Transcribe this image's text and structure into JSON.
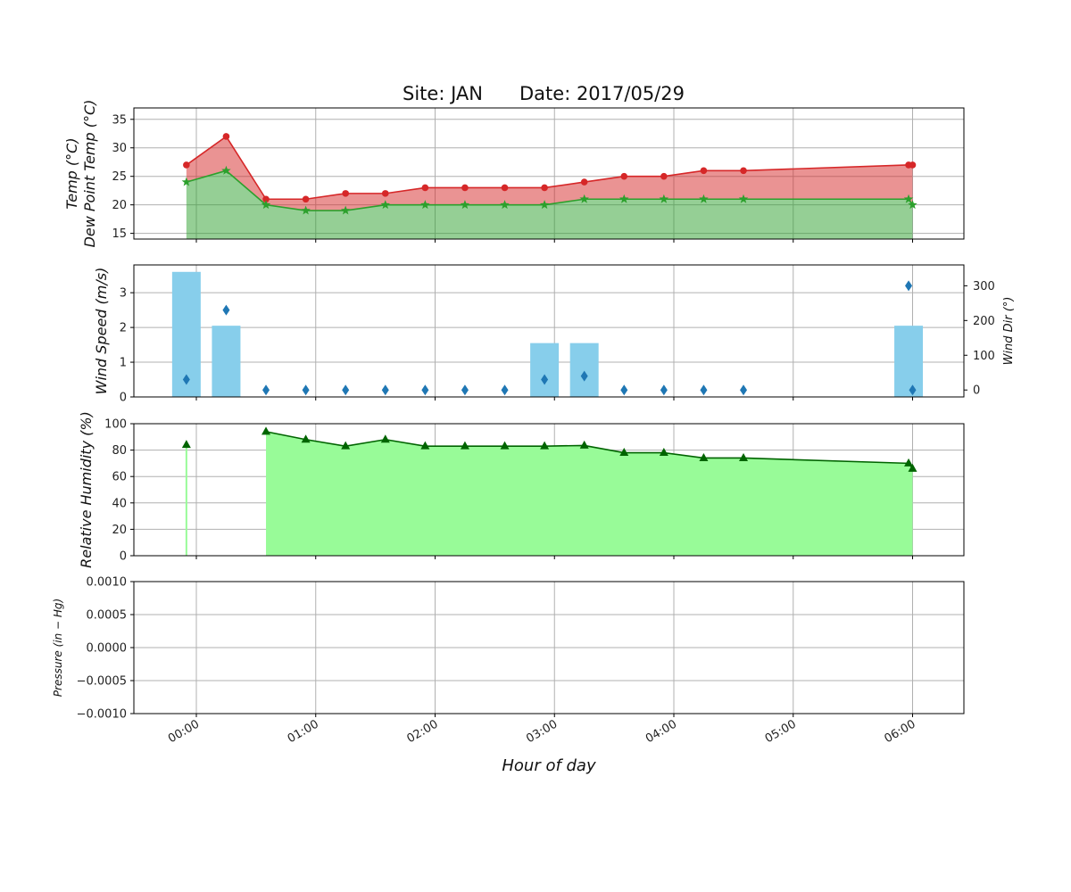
{
  "figure": {
    "title_site": "Site: JAN",
    "title_date": "Date: 2017/05/29",
    "xlabel": "Hour of day",
    "xticks": [
      "00:00",
      "01:00",
      "02:00",
      "03:00",
      "04:00",
      "05:00",
      "06:00"
    ]
  },
  "chart_data": [
    {
      "type": "area",
      "ylabel_line1": "Temp (°C)",
      "ylabel_line2": "Dew Point Temp (°C)",
      "ylim": [
        14,
        37
      ],
      "yticks": [
        "15",
        "20",
        "25",
        "30",
        "35"
      ],
      "x": [
        "23:55",
        "00:15",
        "00:35",
        "00:55",
        "01:15",
        "01:35",
        "01:55",
        "02:15",
        "02:35",
        "02:55",
        "03:15",
        "03:35",
        "03:55",
        "04:15",
        "04:35",
        "05:58",
        "06:00"
      ],
      "series": [
        {
          "name": "Temp",
          "color": "#d62728",
          "values": [
            27,
            32,
            21,
            21,
            22,
            22,
            23,
            23,
            23,
            23,
            24,
            25,
            25,
            26,
            26,
            27,
            27
          ]
        },
        {
          "name": "Dew Point Temp",
          "color": "#2ca02c",
          "values": [
            24,
            26,
            20,
            19,
            19,
            20,
            20,
            20,
            20,
            20,
            21,
            21,
            21,
            21,
            21,
            21,
            20
          ]
        }
      ]
    },
    {
      "type": "bar",
      "ylabel": "Wind Speed (m/s)",
      "ylabel_right": "Wind Dir (°)",
      "ylim": [
        0,
        3.8
      ],
      "yticks": [
        "0",
        "1",
        "2",
        "3"
      ],
      "ylim_right": [
        -20,
        360
      ],
      "yticks_right": [
        "0",
        "100",
        "200",
        "300"
      ],
      "bar_color": "#87ceeb",
      "marker_color": "#1f77b4",
      "bars": [
        {
          "x": "23:55",
          "speed": 3.6
        },
        {
          "x": "00:15",
          "speed": 2.05
        },
        {
          "x": "02:55",
          "speed": 1.55
        },
        {
          "x": "03:15",
          "speed": 1.55
        },
        {
          "x": "05:58",
          "speed": 2.05
        }
      ],
      "wind_dir": [
        {
          "x": "23:55",
          "deg": 30
        },
        {
          "x": "00:15",
          "deg": 230
        },
        {
          "x": "00:35",
          "deg": 0
        },
        {
          "x": "00:55",
          "deg": 0
        },
        {
          "x": "01:15",
          "deg": 0
        },
        {
          "x": "01:35",
          "deg": 0
        },
        {
          "x": "01:55",
          "deg": 0
        },
        {
          "x": "02:15",
          "deg": 0
        },
        {
          "x": "02:35",
          "deg": 0
        },
        {
          "x": "02:55",
          "deg": 30
        },
        {
          "x": "03:15",
          "deg": 40
        },
        {
          "x": "03:35",
          "deg": 0
        },
        {
          "x": "03:55",
          "deg": 0
        },
        {
          "x": "04:15",
          "deg": 0
        },
        {
          "x": "04:35",
          "deg": 0
        },
        {
          "x": "05:58",
          "deg": 300
        },
        {
          "x": "06:00",
          "deg": 0
        }
      ]
    },
    {
      "type": "area",
      "ylabel": "Relative Humidity (%)",
      "ylim": [
        0,
        100
      ],
      "yticks": [
        "0",
        "20",
        "40",
        "60",
        "80",
        "100"
      ],
      "fill_color": "#98fb98",
      "line_color": "#006400",
      "segments": [
        {
          "x": [
            "23:55"
          ],
          "values": [
            84
          ]
        },
        {
          "x": [
            "00:35",
            "00:55",
            "01:15",
            "01:35",
            "01:55",
            "02:15",
            "02:35",
            "02:55",
            "03:15",
            "03:35",
            "03:55",
            "04:15",
            "04:35",
            "05:58",
            "06:00"
          ],
          "values": [
            94,
            88,
            83,
            88,
            83,
            83,
            83,
            83,
            83.5,
            78,
            78,
            74,
            74,
            70,
            66
          ]
        }
      ]
    },
    {
      "type": "line",
      "ylabel": "Pressure (in − Hg)",
      "ylim": [
        -0.001,
        0.001
      ],
      "yticks": [
        "0.0010",
        "0.0005",
        "0.0000",
        "−0.0005",
        "−0.0010"
      ],
      "values": []
    }
  ]
}
